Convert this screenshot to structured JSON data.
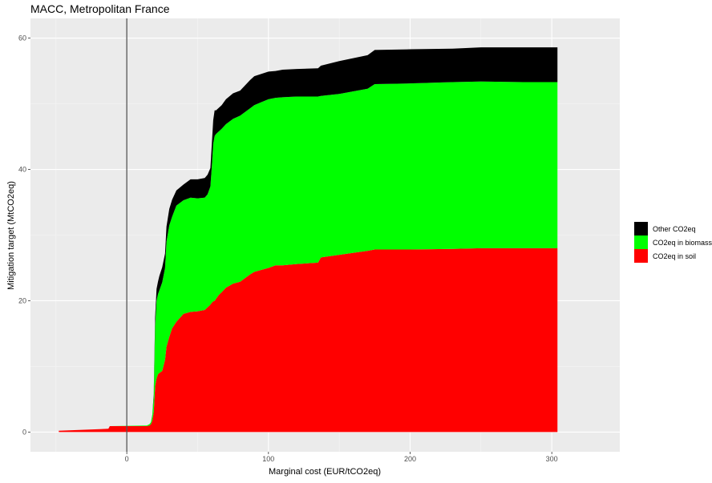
{
  "chart_data": {
    "type": "area",
    "stacked": true,
    "title": "MACC, Metropolitan France",
    "xlabel": "Marginal cost (EUR/tCO2eq)",
    "ylabel": "Mitigation target (MtCO2eq)",
    "xlim": [
      -68,
      348
    ],
    "ylim": [
      -3,
      63
    ],
    "x_ticks": [
      0,
      100,
      200,
      300
    ],
    "y_ticks": [
      0,
      20,
      40,
      60
    ],
    "vline_x": 0,
    "grid": true,
    "legend_position": "right",
    "x": [
      -48,
      -13,
      -12,
      14,
      16,
      17,
      18,
      19,
      20,
      21,
      22,
      23,
      25,
      27,
      28,
      30,
      32,
      35,
      40,
      45,
      50,
      55,
      57,
      59,
      60,
      61,
      62,
      63,
      65,
      67,
      70,
      75,
      80,
      87,
      90,
      100,
      105,
      110,
      120,
      135,
      137,
      150,
      170,
      175,
      200,
      230,
      250,
      280,
      304
    ],
    "series": [
      {
        "name": "CO2eq in soil",
        "color": "#ff0000",
        "values": [
          0.2,
          0.5,
          0.9,
          0.9,
          1.0,
          1.2,
          1.7,
          3.0,
          7.0,
          8.2,
          8.8,
          9.0,
          9.3,
          11.0,
          13.0,
          14.5,
          15.8,
          16.8,
          18.0,
          18.3,
          18.4,
          18.6,
          19.0,
          19.4,
          19.7,
          19.9,
          20.0,
          20.3,
          20.9,
          21.3,
          22.0,
          22.6,
          22.9,
          24.0,
          24.4,
          25.0,
          25.4,
          25.4,
          25.6,
          25.8,
          26.6,
          27.0,
          27.6,
          27.8,
          27.8,
          27.9,
          28.0,
          28.0,
          28.0
        ]
      },
      {
        "name": "CO2eq in biomass",
        "color": "#00ff00",
        "values": [
          0.0,
          0.0,
          0.0,
          0.1,
          0.2,
          0.3,
          0.8,
          2.3,
          9.0,
          11.8,
          12.2,
          12.6,
          13.5,
          14.0,
          16.0,
          17.0,
          17.0,
          17.7,
          17.3,
          17.4,
          17.2,
          17.1,
          17.2,
          18.0,
          20.7,
          24.0,
          25.1,
          25.1,
          24.9,
          24.9,
          24.9,
          25.1,
          25.3,
          25.3,
          25.4,
          25.7,
          25.5,
          25.6,
          25.5,
          25.3,
          24.6,
          24.5,
          24.7,
          25.2,
          25.3,
          25.4,
          25.4,
          25.3,
          25.3
        ]
      },
      {
        "name": "Other CO2eq",
        "color": "#000000",
        "values": [
          0.0,
          0.0,
          0.0,
          0.0,
          0.0,
          0.0,
          0.1,
          0.5,
          1.5,
          1.8,
          1.9,
          2.2,
          2.3,
          2.2,
          2.3,
          2.5,
          2.6,
          2.3,
          2.4,
          2.8,
          2.9,
          3.0,
          3.0,
          2.8,
          3.4,
          3.6,
          3.9,
          3.6,
          3.6,
          3.6,
          3.8,
          3.9,
          3.8,
          4.3,
          4.4,
          4.2,
          4.1,
          4.2,
          4.2,
          4.3,
          4.6,
          5.0,
          5.1,
          5.2,
          5.2,
          5.1,
          5.2,
          5.3,
          5.3
        ]
      }
    ],
    "legend_order": [
      "Other CO2eq",
      "CO2eq in biomass",
      "CO2eq in soil"
    ]
  }
}
